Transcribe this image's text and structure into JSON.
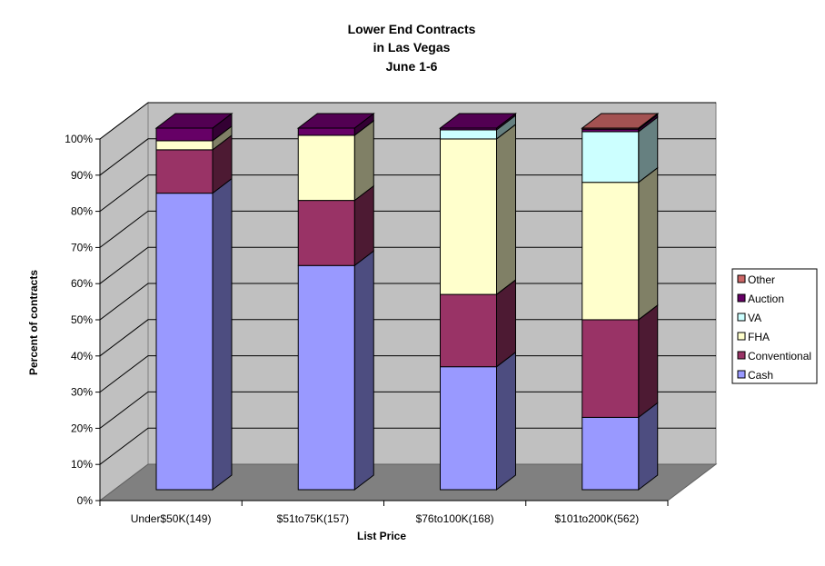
{
  "chart_data": {
    "type": "bar",
    "stacked": true,
    "percent": true,
    "three_d": true,
    "title": [
      "Lower End Contracts",
      "in Las Vegas",
      "June 1-6"
    ],
    "xlabel": "List Price",
    "ylabel": "Percent of contracts",
    "ylim": [
      0,
      100
    ],
    "yticks": [
      "0%",
      "10%",
      "20%",
      "30%",
      "40%",
      "50%",
      "60%",
      "70%",
      "80%",
      "90%",
      "100%"
    ],
    "categories": [
      "Under$50K(149)",
      "$51to75K(157)",
      "$76to100K(168)",
      "$101to200K(562)"
    ],
    "series": [
      {
        "name": "Cash",
        "color": "#9999ff",
        "values": [
          82,
          62,
          34,
          20
        ]
      },
      {
        "name": "Conventional",
        "color": "#993366",
        "values": [
          12,
          18,
          20,
          27
        ]
      },
      {
        "name": "FHA",
        "color": "#ffffcc",
        "values": [
          2.5,
          18,
          43,
          38
        ]
      },
      {
        "name": "VA",
        "color": "#ccffff",
        "values": [
          0,
          0,
          2.5,
          14
        ]
      },
      {
        "name": "Auction",
        "color": "#660066",
        "values": [
          3.5,
          2,
          0.5,
          0.7
        ]
      },
      {
        "name": "Other",
        "color": "#cc6666",
        "values": [
          0,
          0,
          0,
          0.3
        ]
      }
    ],
    "legend_position": "right",
    "grid": true
  }
}
